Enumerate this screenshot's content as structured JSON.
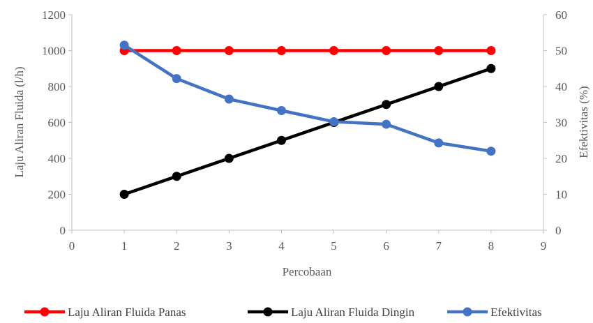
{
  "chart_data": {
    "type": "line",
    "title": "",
    "xlabel": "Percobaan",
    "ylabel_left": "Laju Aliran Fluida (l/h)",
    "ylabel_right": "Efektivitas (%)",
    "xlim": [
      0,
      9
    ],
    "ylim_left": [
      0,
      1200
    ],
    "ylim_right": [
      0,
      60
    ],
    "x_ticks": [
      0,
      1,
      2,
      3,
      4,
      5,
      6,
      7,
      8,
      9
    ],
    "y_ticks_left": [
      0,
      200,
      400,
      600,
      800,
      1000,
      1200
    ],
    "y_ticks_right": [
      0,
      10,
      20,
      30,
      40,
      50,
      60
    ],
    "grid": false,
    "legend_position": "bottom",
    "x": [
      1,
      2,
      3,
      4,
      5,
      6,
      7,
      8
    ],
    "series": [
      {
        "name": "Laju Aliran Fluida Panas",
        "axis": "left",
        "color": "#ff0000",
        "values": [
          1000,
          1000,
          1000,
          1000,
          1000,
          1000,
          1000,
          1000
        ]
      },
      {
        "name": "Laju Aliran Fluida Dingin",
        "axis": "left",
        "color": "#000000",
        "values": [
          200,
          300,
          400,
          500,
          600,
          700,
          800,
          900
        ]
      },
      {
        "name": "Efektivitas",
        "axis": "right",
        "color": "#4472c4",
        "values": [
          51.5,
          42.2,
          36.5,
          33.3,
          30.2,
          29.5,
          24.3,
          22.0
        ]
      }
    ]
  }
}
